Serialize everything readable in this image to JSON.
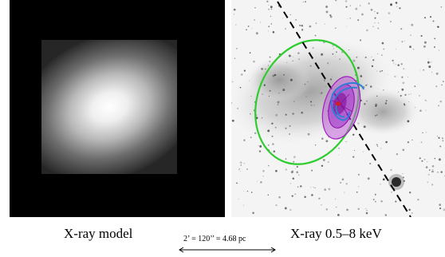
{
  "panels": {
    "left": {
      "caption": "X-ray  model"
    },
    "right": {
      "caption": "X-ray  0.5–8 keV"
    }
  },
  "scale_bar": {
    "label": "2’ = 120’’  = 4.68 pc"
  },
  "colors": {
    "contour_green": "#2ecc2e",
    "contour_magenta": "#a020c0",
    "contour_blue": "#2f7fd6",
    "dashed_line": "#000000"
  }
}
